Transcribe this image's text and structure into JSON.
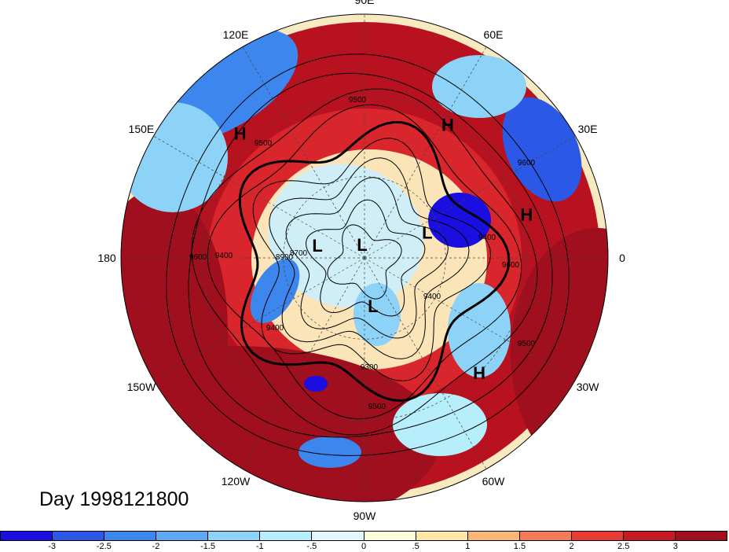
{
  "title": "Day 1998121800",
  "longitude_labels": [
    {
      "text": "90E",
      "lon": 90
    },
    {
      "text": "60E",
      "lon": 60
    },
    {
      "text": "120E",
      "lon": 120
    },
    {
      "text": "30E",
      "lon": 30
    },
    {
      "text": "150E",
      "lon": 150
    },
    {
      "text": "180",
      "lon": 180
    },
    {
      "text": "0",
      "lon": 0
    },
    {
      "text": "150W",
      "lon": -150
    },
    {
      "text": "30W",
      "lon": -30
    },
    {
      "text": "120W",
      "lon": -120
    },
    {
      "text": "60W",
      "lon": -60
    },
    {
      "text": "90W",
      "lon": -90
    }
  ],
  "pressure_centers": [
    {
      "text": "H",
      "lon": 58,
      "lat": 32
    },
    {
      "text": "H",
      "lon": 135,
      "lat": 25
    },
    {
      "text": "H",
      "lon": 15,
      "lat": 28
    },
    {
      "text": "H",
      "lon": -45,
      "lat": 30
    },
    {
      "text": "L",
      "lon": 165,
      "lat": 72
    },
    {
      "text": "L",
      "lon": 100,
      "lat": 85
    },
    {
      "text": "L",
      "lon": 22,
      "lat": 65
    },
    {
      "text": "L",
      "lon": -80,
      "lat": 72
    }
  ],
  "contour_labels": [
    "9500",
    "9500",
    "9400",
    "9400",
    "9600",
    "9600",
    "8900",
    "8700",
    "9400",
    "9300",
    "9500",
    "9400",
    "9500",
    "9600"
  ],
  "colorbar": {
    "colors": [
      "#1a0fe0",
      "#2c58e8",
      "#3d86ee",
      "#5eaaf2",
      "#8dd2f7",
      "#b6eefb",
      "#e3f8fb",
      "#fefbdc",
      "#fde8a9",
      "#f9b676",
      "#f27c58",
      "#e83d36",
      "#c61a25",
      "#a00f1e"
    ],
    "tick_labels": [
      "-3",
      "-2.5",
      "-2",
      "-1.5",
      "-1",
      "-.5",
      "0",
      ".5",
      "1",
      "1.5",
      "2",
      "2.5",
      "3"
    ]
  }
}
